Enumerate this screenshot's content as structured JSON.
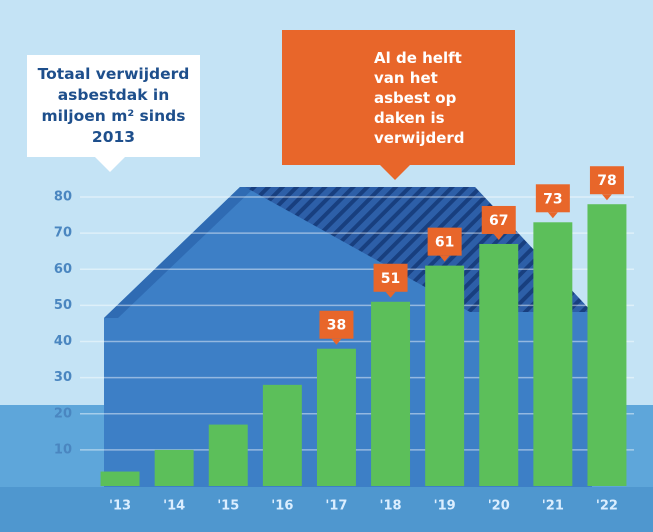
{
  "chart_data": {
    "type": "bar",
    "title": "Totaal verwijderd asbestdak in miljoen m² sinds 2013",
    "annotation": "Al de helft van het asbest op daken is verwijderd",
    "categories": [
      "'13",
      "'14",
      "'15",
      "'16",
      "'17",
      "'18",
      "'19",
      "'20",
      "'21",
      "'22"
    ],
    "values": [
      4,
      10,
      17,
      28,
      38,
      51,
      61,
      67,
      73,
      78
    ],
    "color": "#5cbf5a",
    "ylim": [
      0,
      80
    ],
    "yticks": [
      10,
      20,
      30,
      40,
      50,
      60,
      70,
      80
    ],
    "grid": true
  }
}
